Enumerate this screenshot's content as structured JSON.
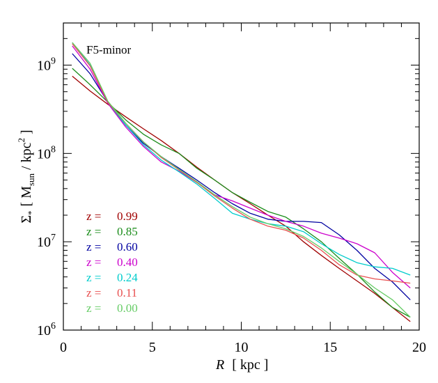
{
  "chart_data": {
    "type": "line",
    "title": "",
    "annotation": "F5-minor",
    "xlabel": {
      "var": "R",
      "unit": "[ kpc ]"
    },
    "ylabel": {
      "sym": "Σ",
      "sub": "*",
      "open": "[ M",
      "sun": "sun",
      "mid": " / kpc",
      "sup": "2",
      "close": " ]"
    },
    "xlim": [
      0,
      20
    ],
    "ylim": [
      1000000,
      3000000000
    ],
    "yscale": "log",
    "x_ticks": [
      0,
      5,
      10,
      15,
      20
    ],
    "x_tick_labels": [
      "0",
      "5",
      "10",
      "15",
      "20"
    ],
    "y_ticks": [
      1000000,
      10000000,
      100000000,
      1000000000
    ],
    "y_tick_labels": [
      {
        "base": "10",
        "exp": "6"
      },
      {
        "base": "10",
        "exp": "7"
      },
      {
        "base": "10",
        "exp": "8"
      },
      {
        "base": "10",
        "exp": "9"
      }
    ],
    "legend_placement": "lower-left",
    "x": [
      0.5,
      1.5,
      2.5,
      3.5,
      4.5,
      5.5,
      6.5,
      7.5,
      8.5,
      9.5,
      10.5,
      11.5,
      12.5,
      13.5,
      14.5,
      15.5,
      16.5,
      17.5,
      18.5,
      19.5
    ],
    "series": [
      {
        "name": "z = 0.99",
        "prefix": "z =",
        "value": "0.99",
        "color": "#a00000",
        "values": [
          750000000,
          510000000,
          360000000,
          260000000,
          190000000,
          140000000,
          100000000,
          70000000,
          50000000,
          36000000,
          27000000,
          20000000,
          15000000,
          10000000,
          7000000,
          5000000,
          3600000,
          2600000,
          1800000,
          1250000
        ]
      },
      {
        "name": "z = 0.85",
        "prefix": "z =",
        "value": "0.85",
        "color": "#1a8c1a",
        "values": [
          920000000,
          600000000,
          380000000,
          240000000,
          165000000,
          125000000,
          100000000,
          68000000,
          50000000,
          36000000,
          28000000,
          22000000,
          19000000,
          14000000,
          10000000,
          6500000,
          4300000,
          2700000,
          1800000,
          1400000
        ]
      },
      {
        "name": "z = 0.60",
        "prefix": "z =",
        "value": "0.60",
        "color": "#0000a0",
        "values": [
          1350000000,
          800000000,
          380000000,
          210000000,
          130000000,
          92000000,
          68000000,
          50000000,
          36000000,
          27000000,
          21000000,
          18000000,
          17000000,
          17000000,
          16500000,
          12000000,
          8000000,
          5000000,
          3500000,
          2200000
        ]
      },
      {
        "name": "z = 0.40",
        "prefix": "z =",
        "value": "0.40",
        "color": "#cc00cc",
        "values": [
          1650000000,
          900000000,
          370000000,
          200000000,
          120000000,
          80000000,
          63000000,
          47000000,
          34000000,
          29000000,
          24000000,
          20000000,
          17000000,
          15000000,
          12500000,
          11000000,
          9500000,
          7500000,
          4500000,
          3000000
        ]
      },
      {
        "name": "z = 0.24",
        "prefix": "z =",
        "value": "0.24",
        "color": "#00cccc",
        "values": [
          1800000000,
          1000000000,
          380000000,
          210000000,
          125000000,
          84000000,
          62000000,
          45000000,
          31000000,
          21000000,
          18000000,
          16000000,
          15000000,
          13000000,
          9500000,
          7200000,
          5800000,
          5200000,
          5000000,
          4200000
        ]
      },
      {
        "name": "z = 0.11",
        "prefix": "z =",
        "value": "0.11",
        "color": "#e85050",
        "values": [
          1750000000,
          980000000,
          380000000,
          220000000,
          135000000,
          90000000,
          65000000,
          47000000,
          33000000,
          24000000,
          18000000,
          15000000,
          13500000,
          11000000,
          8000000,
          5500000,
          4200000,
          3800000,
          3600000,
          3400000
        ]
      },
      {
        "name": "z = 0.00",
        "prefix": "z =",
        "value": "0.00",
        "color": "#66cc66",
        "values": [
          1800000000,
          1050000000,
          390000000,
          220000000,
          135000000,
          92000000,
          66000000,
          48000000,
          34000000,
          25000000,
          19000000,
          16000000,
          14000000,
          11500000,
          8500000,
          6000000,
          4300000,
          3000000,
          2200000,
          1400000
        ]
      }
    ]
  }
}
